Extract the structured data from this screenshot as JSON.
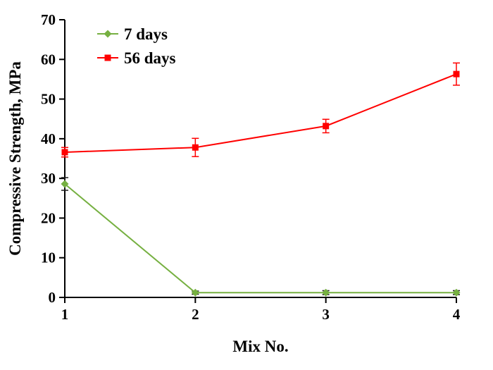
{
  "figure": {
    "background": "#ffffff",
    "axis_color": "#000000"
  },
  "chart_data": {
    "type": "line",
    "title": "",
    "xlabel": "Mix No.",
    "ylabel": "Compressive Strength, MPa",
    "x": [
      1,
      2,
      3,
      4
    ],
    "xticks": [
      1,
      2,
      3,
      4
    ],
    "yticks": [
      0,
      10,
      20,
      30,
      40,
      50,
      60,
      70
    ],
    "xlim": [
      1,
      4
    ],
    "ylim": [
      0,
      70
    ],
    "grid": false,
    "legend_position": "inside-top-left",
    "series": [
      {
        "name": "7 days",
        "color": "#76b041",
        "marker": "diamond",
        "error_color": "#1a1a1a",
        "values": [
          28.6,
          1.2,
          1.2,
          1.2
        ],
        "errors": [
          1.6,
          0.4,
          0.5,
          0.5
        ]
      },
      {
        "name": "56 days",
        "color": "#ff0000",
        "marker": "square",
        "error_color": "#ff0000",
        "values": [
          36.6,
          37.8,
          43.2,
          56.3
        ],
        "errors": [
          1.2,
          2.3,
          1.7,
          2.8
        ]
      }
    ]
  }
}
